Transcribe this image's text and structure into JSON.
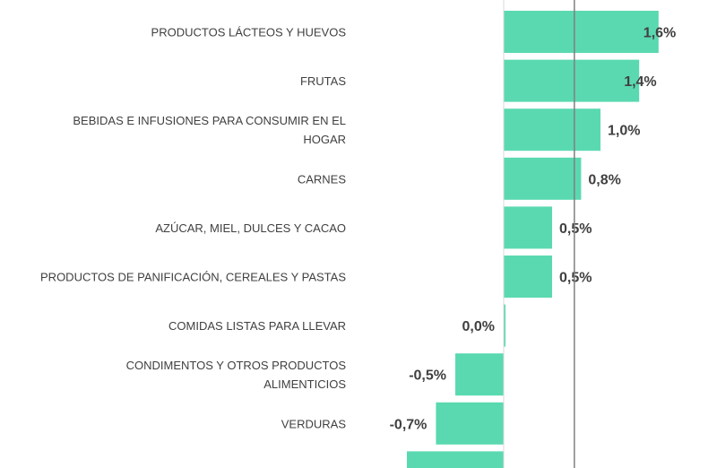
{
  "chart_data": {
    "type": "bar",
    "orientation": "horizontal",
    "categories": [
      [
        "PRODUCTOS LÁCTEOS Y HUEVOS"
      ],
      [
        "FRUTAS"
      ],
      [
        "BEBIDAS E INFUSIONES PARA CONSUMIR EN EL",
        "HOGAR"
      ],
      [
        "CARNES"
      ],
      [
        "AZÚCAR, MIEL, DULCES Y CACAO"
      ],
      [
        "PRODUCTOS DE PANIFICACIÓN, CEREALES Y PASTAS"
      ],
      [
        "COMIDAS LISTAS PARA LLEVAR"
      ],
      [
        "CONDIMENTOS Y OTROS PRODUCTOS",
        "ALIMENTICIOS"
      ],
      [
        "VERDURAS"
      ],
      []
    ],
    "values": [
      1.6,
      1.4,
      1.0,
      0.8,
      0.5,
      0.5,
      0.0,
      -0.5,
      -0.7,
      -1.0
    ],
    "labels": [
      "1,6%",
      "1,4%",
      "1,0%",
      "0,8%",
      "0,5%",
      "0,5%",
      "0,0%",
      "-0,5%",
      "-0,7%",
      ""
    ],
    "reference_line": 0.73,
    "bar_color": "#5ad9b0",
    "reference_color": "#7f7f7f",
    "xlabel": "",
    "ylabel": "",
    "title": ""
  }
}
